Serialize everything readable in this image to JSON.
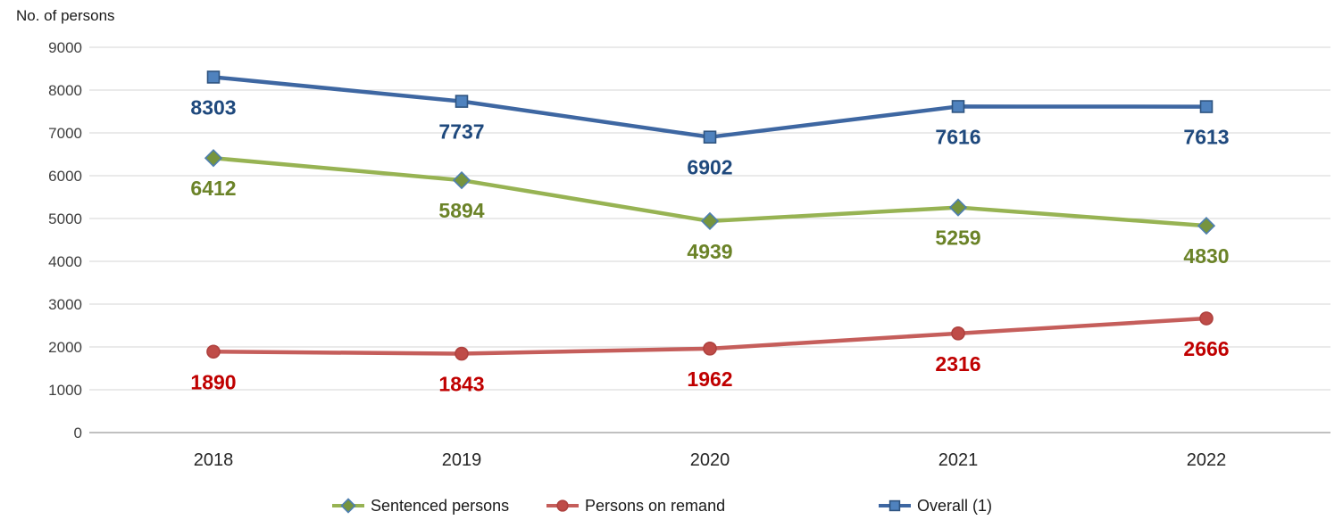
{
  "chart_data": {
    "type": "line",
    "title": "",
    "ylabel": "No. of persons",
    "xlabel": "",
    "categories": [
      "2018",
      "2019",
      "2020",
      "2021",
      "2022"
    ],
    "series": [
      {
        "name": "Sentenced persons",
        "marker": "diamond",
        "values": [
          6412,
          5894,
          4939,
          5259,
          4830
        ],
        "line_color": "#97B353",
        "marker_fill": "#76943E",
        "marker_stroke": "#4E7FB0",
        "label_color": "#6B8328"
      },
      {
        "name": "Persons on remand",
        "marker": "circle",
        "values": [
          1890,
          1843,
          1962,
          2316,
          2666
        ],
        "line_color": "#C55E5B",
        "marker_fill": "#BF4C48",
        "marker_stroke": "#AF423F",
        "label_color": "#C00000"
      },
      {
        "name": "Overall (1)",
        "marker": "square",
        "values": [
          8303,
          7737,
          6902,
          7616,
          7613
        ],
        "line_color": "#3E67A2",
        "marker_fill": "#4F82BE",
        "marker_stroke": "#2F5480",
        "label_color": "#1F497D"
      }
    ],
    "ylim": [
      0,
      9000
    ],
    "ytick_step": 1000,
    "grid": true,
    "grid_color": "#D6D6D6",
    "zero_line_color": "#9B9B9B",
    "tick_text_color": "#404040",
    "xlabel_text_color": "#262626",
    "legend_text_color": "#1A1A1A",
    "value_labels": true,
    "legend_position": "bottom"
  }
}
